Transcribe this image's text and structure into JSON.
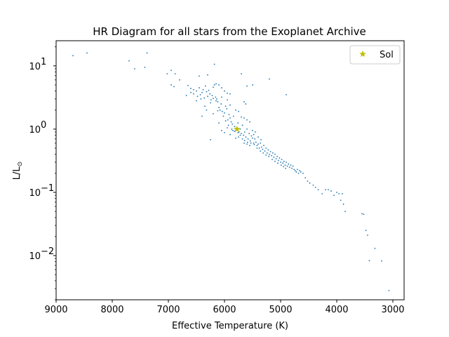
{
  "chart_data": {
    "type": "scatter",
    "title": "HR Diagram for all stars from the Exoplanet Archive",
    "xlabel": "Effective Temperature (K)",
    "ylabel": "L/L",
    "ylabel_subscript": "⊙",
    "x_scale": "linear",
    "x_inverted": true,
    "xlim": [
      9000,
      2800
    ],
    "x_ticks": [
      9000,
      8000,
      7000,
      6000,
      5000,
      4000,
      3000
    ],
    "x_tick_labels": [
      "9000",
      "8000",
      "7000",
      "6000",
      "5000",
      "4000",
      "3000"
    ],
    "y_scale": "log",
    "ylim": [
      0.002,
      25
    ],
    "y_ticks": [
      0.01,
      0.1,
      1,
      10
    ],
    "y_tick_labels": [
      {
        "base": "10",
        "exp": "−2"
      },
      {
        "base": "10",
        "exp": "−1"
      },
      {
        "base": "10",
        "exp": "0"
      },
      {
        "base": "10",
        "exp": "1"
      }
    ],
    "grid": false,
    "legend": {
      "position": "top-right",
      "entries": [
        "Sol"
      ]
    },
    "colors": {
      "stars": "#1f77b4",
      "sol": "#bfbf00"
    },
    "series": [
      {
        "name": "stars",
        "marker": "dot",
        "points": [
          [
            8700,
            14.5
          ],
          [
            8450,
            16.0
          ],
          [
            7700,
            12.0
          ],
          [
            7600,
            9.0
          ],
          [
            7420,
            9.5
          ],
          [
            7380,
            16.0
          ],
          [
            7020,
            7.5
          ],
          [
            6950,
            5.0
          ],
          [
            6900,
            4.7
          ],
          [
            6950,
            8.5
          ],
          [
            6880,
            7.5
          ],
          [
            6800,
            6.0
          ],
          [
            6680,
            3.4
          ],
          [
            6600,
            3.8
          ],
          [
            6550,
            4.2
          ],
          [
            6500,
            4.0
          ],
          [
            6450,
            4.5
          ],
          [
            6430,
            3.5
          ],
          [
            6400,
            3.8
          ],
          [
            6380,
            4.2
          ],
          [
            6360,
            3.1
          ],
          [
            6340,
            4.8
          ],
          [
            6320,
            3.9
          ],
          [
            6300,
            3.3
          ],
          [
            6280,
            4.1
          ],
          [
            6260,
            3.6
          ],
          [
            6240,
            2.9
          ],
          [
            6220,
            3.4
          ],
          [
            6200,
            4.6
          ],
          [
            6180,
            5.0
          ],
          [
            6160,
            3.2
          ],
          [
            6140,
            3.0
          ],
          [
            6120,
            2.7
          ],
          [
            6100,
            2.2
          ],
          [
            6080,
            2.0
          ],
          [
            6060,
            2.5
          ],
          [
            6040,
            1.9
          ],
          [
            6020,
            1.6
          ],
          [
            6000,
            1.8
          ],
          [
            5980,
            2.3
          ],
          [
            5960,
            2.1
          ],
          [
            5940,
            1.4
          ],
          [
            5920,
            1.7
          ],
          [
            5900,
            1.5
          ],
          [
            5880,
            1.3
          ],
          [
            5860,
            1.2
          ],
          [
            5840,
            1.6
          ],
          [
            5820,
            1.1
          ],
          [
            5800,
            0.95
          ],
          [
            5780,
            1.05
          ],
          [
            5760,
            1.25
          ],
          [
            5740,
            0.9
          ],
          [
            5720,
            1.0
          ],
          [
            5700,
            0.85
          ],
          [
            5680,
            1.15
          ],
          [
            5660,
            0.8
          ],
          [
            5640,
            0.9
          ],
          [
            5620,
            0.75
          ],
          [
            5600,
            1.0
          ],
          [
            5580,
            0.7
          ],
          [
            5560,
            0.85
          ],
          [
            5540,
            0.65
          ],
          [
            5520,
            0.78
          ],
          [
            5500,
            0.72
          ],
          [
            5480,
            0.6
          ],
          [
            5460,
            0.7
          ],
          [
            5440,
            0.62
          ],
          [
            5420,
            0.55
          ],
          [
            5400,
            0.58
          ],
          [
            5380,
            0.5
          ],
          [
            5360,
            0.6
          ],
          [
            5340,
            0.52
          ],
          [
            5320,
            0.48
          ],
          [
            5300,
            0.55
          ],
          [
            5280,
            0.45
          ],
          [
            5260,
            0.5
          ],
          [
            5240,
            0.42
          ],
          [
            5220,
            0.47
          ],
          [
            5200,
            0.4
          ],
          [
            5180,
            0.44
          ],
          [
            5160,
            0.38
          ],
          [
            5140,
            0.42
          ],
          [
            5120,
            0.36
          ],
          [
            5100,
            0.4
          ],
          [
            5080,
            0.34
          ],
          [
            5060,
            0.37
          ],
          [
            5040,
            0.32
          ],
          [
            5020,
            0.35
          ],
          [
            5000,
            0.3
          ],
          [
            4980,
            0.33
          ],
          [
            4960,
            0.29
          ],
          [
            4940,
            0.31
          ],
          [
            4920,
            0.27
          ],
          [
            4900,
            0.3
          ],
          [
            4880,
            0.26
          ],
          [
            4860,
            0.28
          ],
          [
            4840,
            0.25
          ],
          [
            4820,
            0.27
          ],
          [
            4800,
            0.24
          ],
          [
            4780,
            0.26
          ],
          [
            4760,
            0.23
          ],
          [
            4740,
            0.22
          ],
          [
            4720,
            0.21
          ],
          [
            4700,
            0.23
          ],
          [
            4680,
            0.2
          ],
          [
            4660,
            0.22
          ],
          [
            4640,
            0.21
          ],
          [
            4600,
            0.2
          ],
          [
            4560,
            0.17
          ],
          [
            4520,
            0.15
          ],
          [
            4480,
            0.14
          ],
          [
            4420,
            0.13
          ],
          [
            4380,
            0.12
          ],
          [
            4330,
            0.11
          ],
          [
            4260,
            0.095
          ],
          [
            4200,
            0.11
          ],
          [
            4150,
            0.11
          ],
          [
            4100,
            0.105
          ],
          [
            4050,
            0.09
          ],
          [
            4000,
            0.1
          ],
          [
            3960,
            0.095
          ],
          [
            3930,
            0.075
          ],
          [
            3900,
            0.095
          ],
          [
            3880,
            0.065
          ],
          [
            3850,
            0.05
          ],
          [
            3550,
            0.046
          ],
          [
            3520,
            0.045
          ],
          [
            3480,
            0.025
          ],
          [
            3450,
            0.021
          ],
          [
            3420,
            0.0083
          ],
          [
            3320,
            0.013
          ],
          [
            3200,
            0.0082
          ],
          [
            3070,
            0.0028
          ],
          [
            6250,
            0.68
          ],
          [
            6180,
            10.6
          ],
          [
            5900,
            3.6
          ],
          [
            5700,
            7.5
          ],
          [
            5200,
            6.2
          ],
          [
            4900,
            3.5
          ],
          [
            5500,
            5.0
          ],
          [
            5600,
            4.8
          ],
          [
            5650,
            2.7
          ],
          [
            5620,
            2.5
          ],
          [
            5950,
            2.9
          ],
          [
            6050,
            3.2
          ],
          [
            6150,
            5.2
          ],
          [
            6300,
            7.2
          ],
          [
            6450,
            6.9
          ],
          [
            6500,
            2.8
          ],
          [
            6400,
            1.6
          ],
          [
            6320,
            2.0
          ],
          [
            6200,
            1.75
          ],
          [
            6100,
            1.25
          ],
          [
            6050,
            0.95
          ],
          [
            6000,
            0.88
          ],
          [
            5950,
            1.05
          ],
          [
            5900,
            0.82
          ],
          [
            5850,
            0.95
          ],
          [
            5800,
            0.72
          ],
          [
            5750,
            0.75
          ],
          [
            5650,
            0.6
          ],
          [
            5600,
            0.58
          ],
          [
            5550,
            0.55
          ],
          [
            5480,
            0.82
          ],
          [
            5450,
            0.9
          ],
          [
            5400,
            0.75
          ],
          [
            5350,
            0.68
          ],
          [
            5900,
            2.4
          ],
          [
            5800,
            2.0
          ],
          [
            5750,
            1.9
          ],
          [
            5700,
            1.55
          ],
          [
            5650,
            1.5
          ],
          [
            5600,
            1.4
          ],
          [
            5550,
            1.3
          ],
          [
            5500,
            0.95
          ],
          [
            6100,
            5.0
          ],
          [
            6050,
            4.5
          ],
          [
            6000,
            4.0
          ],
          [
            5950,
            3.7
          ],
          [
            6250,
            2.6
          ],
          [
            6150,
            2.8
          ],
          [
            6350,
            2.3
          ],
          [
            6420,
            3.0
          ],
          [
            6480,
            3.3
          ],
          [
            6550,
            3.6
          ],
          [
            6600,
            4.4
          ],
          [
            6650,
            4.9
          ],
          [
            6200,
            3.05
          ],
          [
            6120,
            1.95
          ],
          [
            5980,
            1.35
          ],
          [
            5930,
            1.15
          ],
          [
            5870,
            1.0
          ],
          [
            5820,
            0.92
          ],
          [
            5760,
            0.88
          ],
          [
            5720,
            0.8
          ],
          [
            5680,
            0.7
          ],
          [
            5640,
            0.66
          ],
          [
            5590,
            0.62
          ],
          [
            5530,
            0.6
          ],
          [
            5470,
            0.57
          ],
          [
            5420,
            0.5
          ],
          [
            5360,
            0.45
          ],
          [
            5310,
            0.42
          ],
          [
            5260,
            0.39
          ],
          [
            5210,
            0.37
          ],
          [
            5150,
            0.33
          ],
          [
            5100,
            0.31
          ],
          [
            5050,
            0.29
          ],
          [
            4990,
            0.27
          ],
          [
            4950,
            0.255
          ],
          [
            4910,
            0.24
          ]
        ]
      },
      {
        "name": "Sol",
        "marker": "star",
        "points": [
          [
            5778,
            1.0
          ]
        ]
      }
    ]
  }
}
